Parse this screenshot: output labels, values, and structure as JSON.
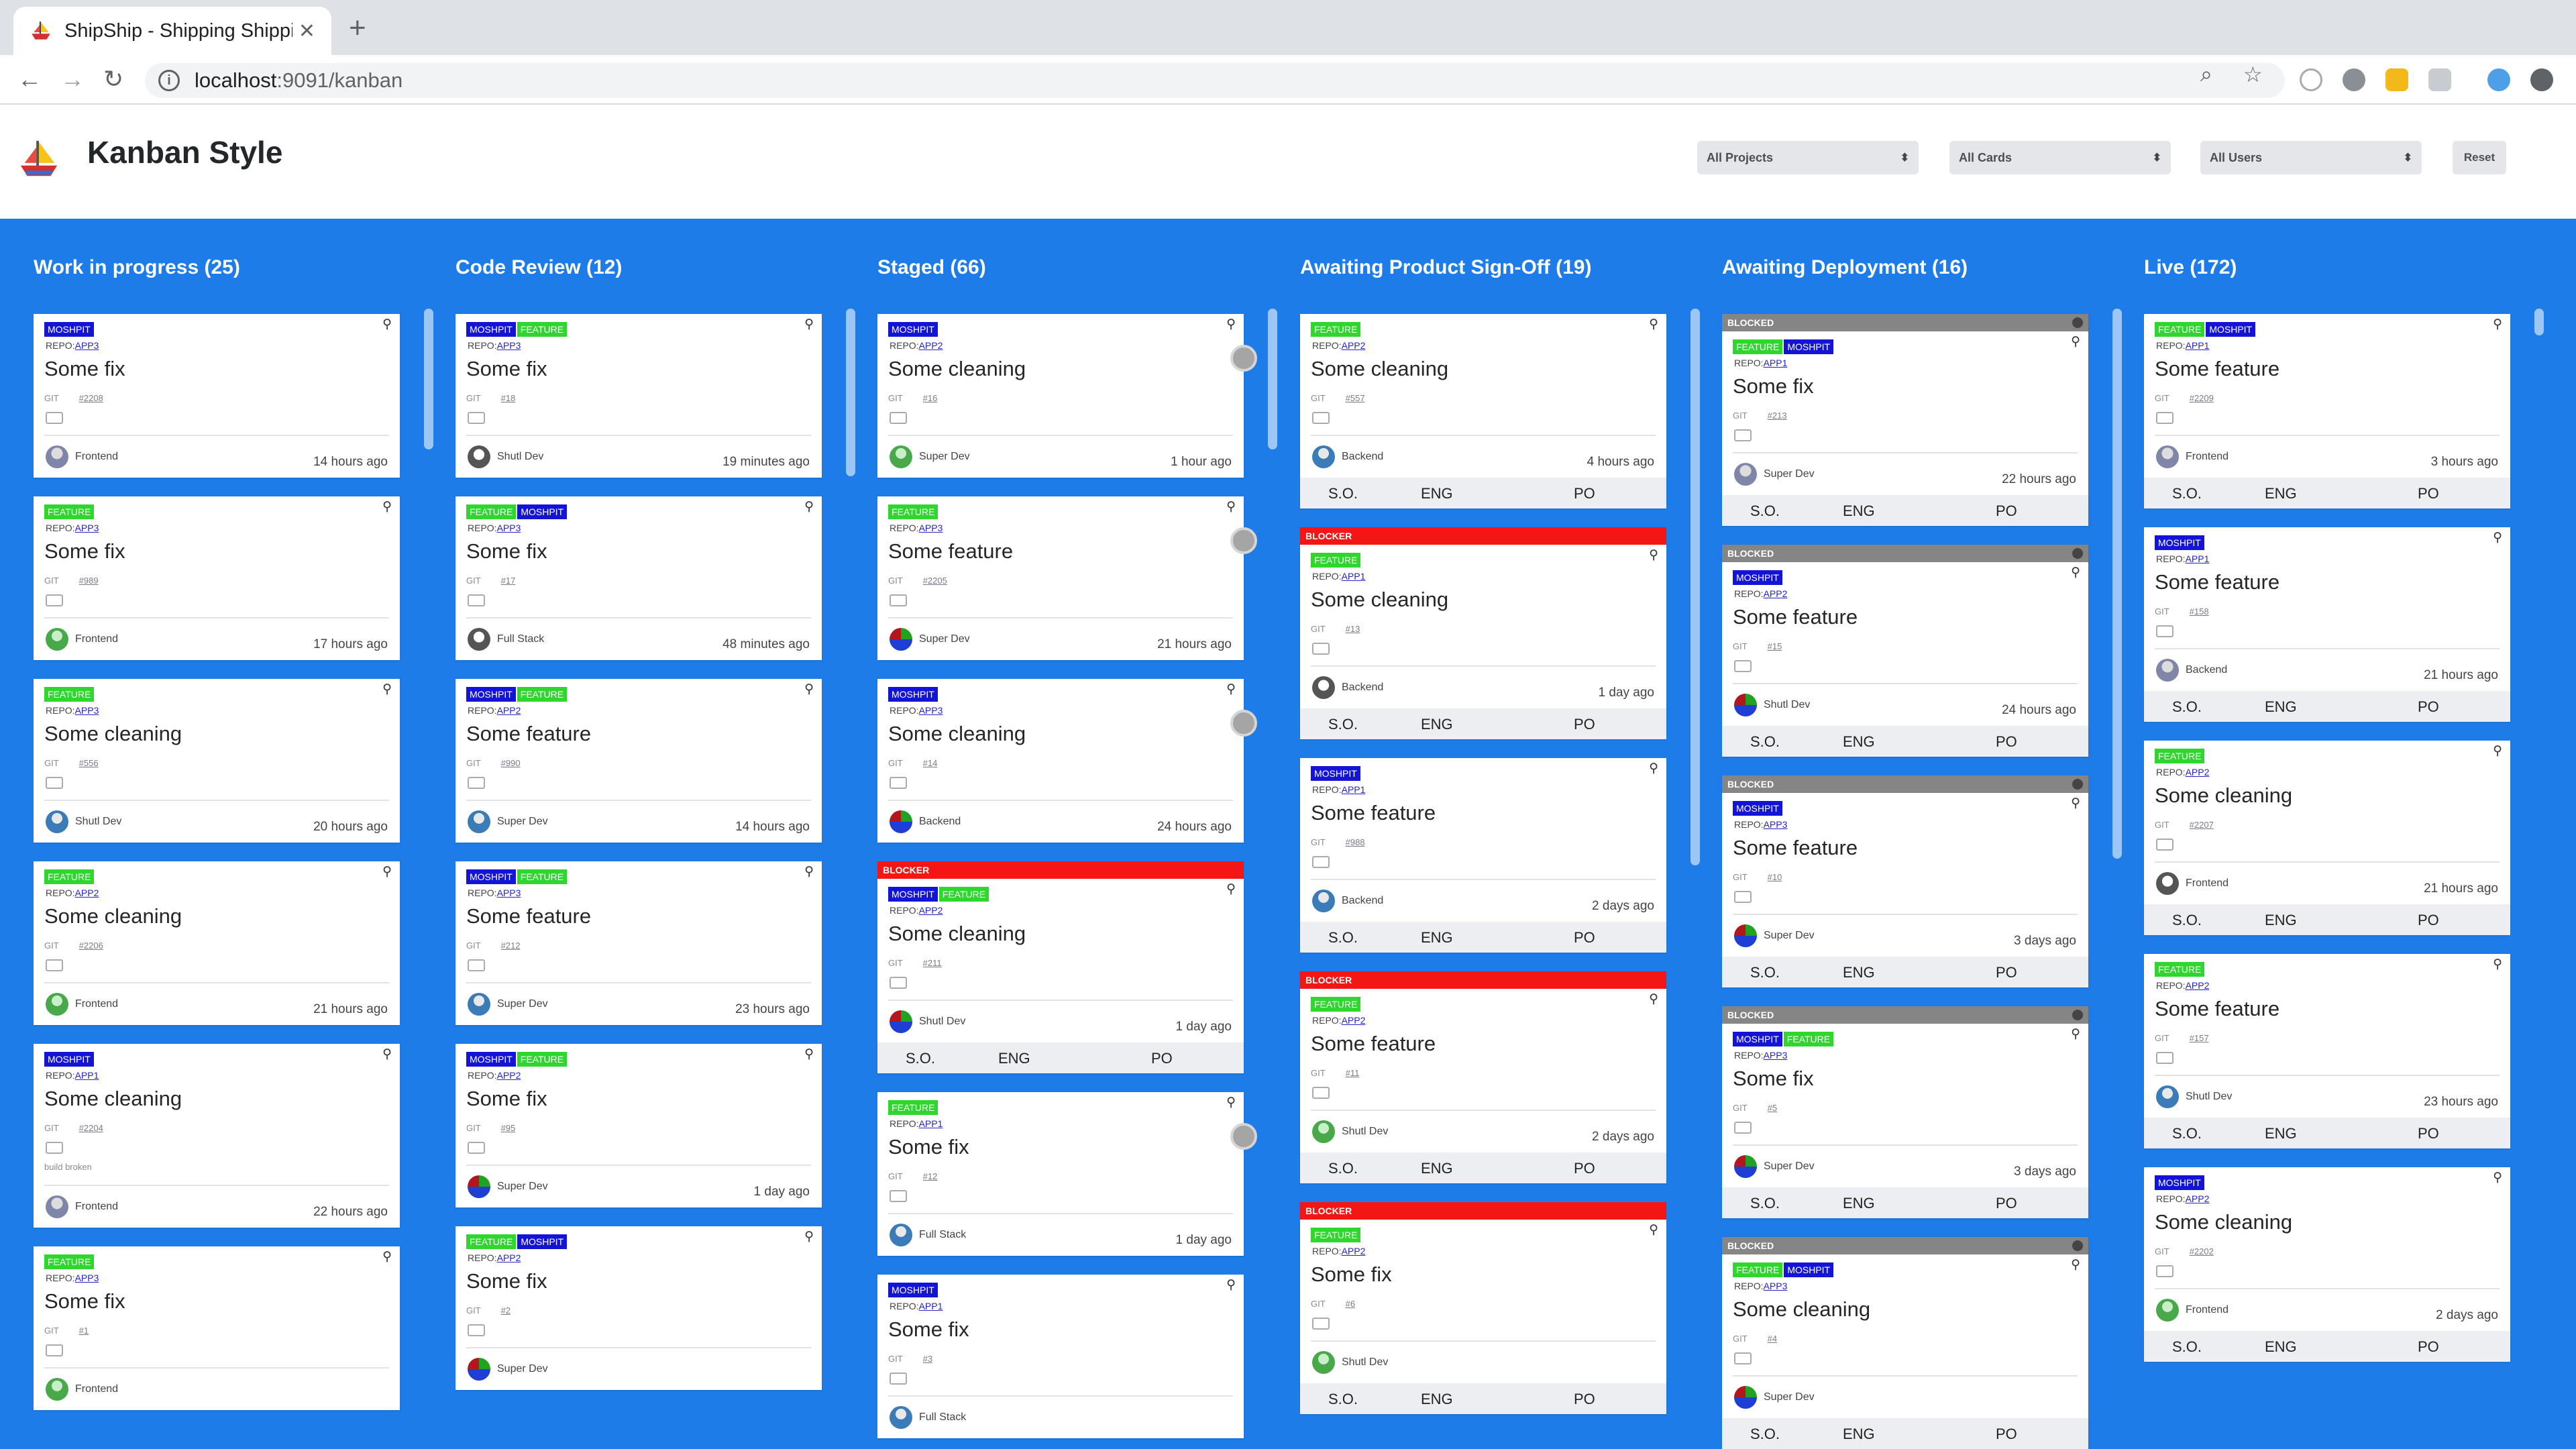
{
  "browser": {
    "tab_title": "ShipShip - Shipping Shipping S",
    "url_host": "localhost",
    "url_rest": ":9091/kanban"
  },
  "app": {
    "title": "Kanban Style",
    "filters": {
      "projects": "All Projects",
      "cards": "All Cards",
      "users": "All Users",
      "reset": "Reset"
    }
  },
  "labels": {
    "repo": "REPO:",
    "git": "GIT",
    "blocked": "BLOCKED",
    "blocker": "BLOCKER",
    "so": "S.O.",
    "eng": "ENG",
    "po": "PO"
  },
  "colors": {
    "board_bg": "#1e7ce8",
    "tag_moshpit": "#1414d8",
    "tag_feature": "#2ed62e",
    "blocked": "#858585",
    "blocker": "#f41515"
  },
  "columns": [
    {
      "title": "Work in progress (25)",
      "cards": [
        {
          "tags": [
            "MOSHPIT"
          ],
          "repo": "APP3",
          "title": "Some fix",
          "pr": "#2208",
          "user": "Frontend",
          "avatar": "av-a",
          "time": "14 hours ago"
        },
        {
          "tags": [
            "FEATURE"
          ],
          "repo": "APP3",
          "title": "Some fix",
          "pr": "#989",
          "user": "Frontend",
          "avatar": "av-b",
          "time": "17 hours ago"
        },
        {
          "tags": [
            "FEATURE"
          ],
          "repo": "APP3",
          "title": "Some cleaning",
          "pr": "#556",
          "user": "Shutl Dev",
          "avatar": "av-c",
          "time": "20 hours ago"
        },
        {
          "tags": [
            "FEATURE"
          ],
          "repo": "APP2",
          "title": "Some cleaning",
          "pr": "#2206",
          "user": "Frontend",
          "avatar": "av-b",
          "time": "21 hours ago"
        },
        {
          "tags": [
            "MOSHPIT"
          ],
          "repo": "APP1",
          "title": "Some cleaning",
          "pr": "#2204",
          "note": "build broken",
          "user": "Frontend",
          "avatar": "av-a",
          "time": "22 hours ago"
        },
        {
          "tags": [
            "FEATURE"
          ],
          "repo": "APP3",
          "title": "Some fix",
          "pr": "#1",
          "user": "Frontend",
          "avatar": "av-b",
          "time": ""
        }
      ]
    },
    {
      "title": "Code Review (12)",
      "cards": [
        {
          "tags": [
            "MOSHPIT",
            "FEATURE"
          ],
          "repo": "APP3",
          "title": "Some fix",
          "pr": "#18",
          "user": "Shutl Dev",
          "avatar": "av-d",
          "time": "19 minutes ago"
        },
        {
          "tags": [
            "FEATURE",
            "MOSHPIT"
          ],
          "repo": "APP3",
          "title": "Some fix",
          "pr": "#17",
          "user": "Full Stack",
          "avatar": "av-d",
          "time": "48 minutes ago"
        },
        {
          "tags": [
            "MOSHPIT",
            "FEATURE"
          ],
          "repo": "APP2",
          "title": "Some feature",
          "pr": "#990",
          "user": "Super Dev",
          "avatar": "av-c",
          "time": "14 hours ago"
        },
        {
          "tags": [
            "MOSHPIT",
            "FEATURE"
          ],
          "repo": "APP3",
          "title": "Some feature",
          "pr": "#212",
          "user": "Super Dev",
          "avatar": "av-c",
          "time": "23 hours ago"
        },
        {
          "tags": [
            "MOSHPIT",
            "FEATURE"
          ],
          "repo": "APP2",
          "title": "Some fix",
          "pr": "#95",
          "user": "Super Dev",
          "avatar": "av-e",
          "time": "1 day ago"
        },
        {
          "tags": [
            "FEATURE",
            "MOSHPIT"
          ],
          "repo": "APP2",
          "title": "Some fix",
          "pr": "#2",
          "user": "Super Dev",
          "avatar": "av-e",
          "time": ""
        }
      ]
    },
    {
      "title": "Staged (66)",
      "cards": [
        {
          "tags": [
            "MOSHPIT"
          ],
          "repo": "APP2",
          "title": "Some cleaning",
          "pr": "#16",
          "user": "Super Dev",
          "avatar": "av-b",
          "time": "1 hour ago",
          "clock": true
        },
        {
          "tags": [
            "FEATURE"
          ],
          "repo": "APP3",
          "title": "Some feature",
          "pr": "#2205",
          "user": "Super Dev",
          "avatar": "av-e",
          "time": "21 hours ago",
          "clock": true
        },
        {
          "tags": [
            "MOSHPIT"
          ],
          "repo": "APP3",
          "title": "Some cleaning",
          "pr": "#14",
          "user": "Backend",
          "avatar": "av-e",
          "time": "24 hours ago",
          "clock": true
        },
        {
          "banner": "blocker",
          "tags": [
            "MOSHPIT",
            "FEATURE"
          ],
          "repo": "APP2",
          "title": "Some cleaning",
          "pr": "#211",
          "user": "Shutl Dev",
          "avatar": "av-e",
          "time": "1 day ago",
          "signoff": true
        },
        {
          "tags": [
            "FEATURE"
          ],
          "repo": "APP1",
          "title": "Some fix",
          "pr": "#12",
          "user": "Full Stack",
          "avatar": "av-c",
          "time": "1 day ago",
          "clock": true
        },
        {
          "tags": [
            "MOSHPIT"
          ],
          "repo": "APP1",
          "title": "Some fix",
          "pr": "#3",
          "user": "Full Stack",
          "avatar": "av-c",
          "time": ""
        }
      ]
    },
    {
      "title": "Awaiting Product Sign-Off (19)",
      "cards": [
        {
          "tags": [
            "FEATURE"
          ],
          "repo": "APP2",
          "title": "Some cleaning",
          "pr": "#557",
          "user": "Backend",
          "avatar": "av-c",
          "time": "4 hours ago",
          "signoff": true
        },
        {
          "banner": "blocker",
          "tags": [
            "FEATURE"
          ],
          "repo": "APP1",
          "title": "Some cleaning",
          "pr": "#13",
          "user": "Backend",
          "avatar": "av-d",
          "time": "1 day ago",
          "signoff": true
        },
        {
          "tags": [
            "MOSHPIT"
          ],
          "repo": "APP1",
          "title": "Some feature",
          "pr": "#988",
          "user": "Backend",
          "avatar": "av-c",
          "time": "2 days ago",
          "signoff": true
        },
        {
          "banner": "blocker",
          "tags": [
            "FEATURE"
          ],
          "repo": "APP2",
          "title": "Some feature",
          "pr": "#11",
          "user": "Shutl Dev",
          "avatar": "av-b",
          "time": "2 days ago",
          "signoff": true
        },
        {
          "banner": "blocker",
          "tags": [
            "FEATURE"
          ],
          "repo": "APP2",
          "title": "Some fix",
          "pr": "#6",
          "user": "Shutl Dev",
          "avatar": "av-b",
          "time": "",
          "signoff": true
        }
      ]
    },
    {
      "title": "Awaiting Deployment (16)",
      "cards": [
        {
          "banner": "blocked",
          "tags": [
            "FEATURE",
            "MOSHPIT"
          ],
          "repo": "APP1",
          "title": "Some fix",
          "pr": "#213",
          "user": "Super Dev",
          "avatar": "av-a",
          "time": "22 hours ago",
          "signoff": true
        },
        {
          "banner": "blocked",
          "tags": [
            "MOSHPIT"
          ],
          "repo": "APP2",
          "title": "Some feature",
          "pr": "#15",
          "user": "Shutl Dev",
          "avatar": "av-e",
          "time": "24 hours ago",
          "signoff": true
        },
        {
          "banner": "blocked",
          "tags": [
            "MOSHPIT"
          ],
          "repo": "APP3",
          "title": "Some feature",
          "pr": "#10",
          "user": "Super Dev",
          "avatar": "av-e",
          "time": "3 days ago",
          "signoff": true
        },
        {
          "banner": "blocked",
          "tags": [
            "MOSHPIT",
            "FEATURE"
          ],
          "repo": "APP3",
          "title": "Some fix",
          "pr": "#5",
          "user": "Super Dev",
          "avatar": "av-e",
          "time": "3 days ago",
          "signoff": true
        },
        {
          "banner": "blocked",
          "tags": [
            "FEATURE",
            "MOSHPIT"
          ],
          "repo": "APP3",
          "title": "Some cleaning",
          "pr": "#4",
          "user": "Super Dev",
          "avatar": "av-e",
          "time": "",
          "signoff": true
        }
      ]
    },
    {
      "title": "Live (172)",
      "cards": [
        {
          "tags": [
            "FEATURE",
            "MOSHPIT"
          ],
          "repo": "APP1",
          "title": "Some feature",
          "pr": "#2209",
          "user": "Frontend",
          "avatar": "av-a",
          "time": "3 hours ago",
          "signoff": true
        },
        {
          "tags": [
            "MOSHPIT"
          ],
          "repo": "APP1",
          "title": "Some feature",
          "pr": "#158",
          "user": "Backend",
          "avatar": "av-a",
          "time": "21 hours ago",
          "signoff": true
        },
        {
          "tags": [
            "FEATURE"
          ],
          "repo": "APP2",
          "title": "Some cleaning",
          "pr": "#2207",
          "user": "Frontend",
          "avatar": "av-d",
          "time": "21 hours ago",
          "signoff": true
        },
        {
          "tags": [
            "FEATURE"
          ],
          "repo": "APP2",
          "title": "Some feature",
          "pr": "#157",
          "user": "Shutl Dev",
          "avatar": "av-c",
          "time": "23 hours ago",
          "signoff": true
        },
        {
          "tags": [
            "MOSHPIT"
          ],
          "repo": "APP2",
          "title": "Some cleaning",
          "pr": "#2202",
          "user": "Frontend",
          "avatar": "av-b",
          "time": "2 days ago",
          "signoff": true
        }
      ]
    }
  ]
}
